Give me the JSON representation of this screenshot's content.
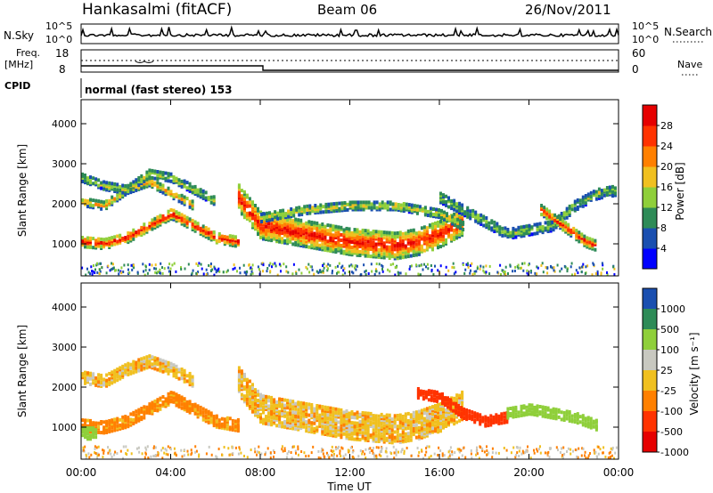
{
  "header": {
    "station": "Hankasalmi (fitACF)",
    "beam": "Beam 06",
    "date": "26/Nov/2011"
  },
  "noise_panel": {
    "left_label": "N.Sky",
    "right_label": "N.Search",
    "left_ticks": [
      "10^5",
      "10^0"
    ],
    "right_ticks": [
      "10^5",
      "10^0"
    ]
  },
  "freq_panel": {
    "left_label_top": "Freq.",
    "left_label_bottom": "[MHz]",
    "left_ticks": [
      "18",
      "8"
    ],
    "right_label": "Nave",
    "right_ticks": [
      "60",
      "0"
    ]
  },
  "cpid": {
    "label": "CPID",
    "mode": "normal (fast stereo) 153"
  },
  "chart_data": [
    {
      "type": "heatmap",
      "name": "power",
      "ylabel": "Slant Range [km]",
      "xlabel": "Time UT",
      "ylim": [
        200,
        4600
      ],
      "xlim": [
        "00:00",
        "24:00"
      ],
      "yticks": [
        "1000",
        "2000",
        "3000",
        "4000"
      ],
      "colorbar_label": "Power [dB]",
      "colorbar_ticks": [
        "4",
        "8",
        "12",
        "16",
        "20",
        "24",
        "28"
      ],
      "colorbar_colors": [
        "#0000ff",
        "#1a4fb0",
        "#2e8b57",
        "#8fcf3a",
        "#f0c020",
        "#ff8000",
        "#ff3300",
        "#e60000"
      ],
      "bands": [
        {
          "t": [
            0,
            1,
            2,
            3,
            4,
            5,
            6,
            7
          ],
          "r": [
            1100,
            1050,
            1200,
            1500,
            1800,
            1500,
            1200,
            1100
          ],
          "w": 250,
          "level": 28
        },
        {
          "t": [
            0,
            1,
            2,
            3,
            4,
            5
          ],
          "r": [
            2100,
            2000,
            2400,
            2600,
            2300,
            2000
          ],
          "w": 200,
          "level": 20
        },
        {
          "t": [
            0,
            1,
            2,
            3,
            4,
            5,
            6
          ],
          "r": [
            2700,
            2500,
            2400,
            2800,
            2700,
            2400,
            2100
          ],
          "w": 200,
          "level": 14
        },
        {
          "t": [
            7,
            8,
            9,
            10,
            11,
            12,
            13,
            14,
            15,
            16,
            17
          ],
          "r": [
            2200,
            1500,
            1400,
            1300,
            1200,
            1100,
            1050,
            1000,
            1100,
            1300,
            1600
          ],
          "w": 650,
          "level": 28
        },
        {
          "t": [
            8,
            10,
            12,
            14,
            16,
            17
          ],
          "r": [
            1700,
            1900,
            2000,
            2000,
            1800,
            1500
          ],
          "w": 200,
          "level": 16
        },
        {
          "t": [
            16,
            17,
            18,
            19,
            20,
            21,
            22,
            23,
            24
          ],
          "r": [
            2200,
            1900,
            1600,
            1300,
            1400,
            1500,
            2000,
            2300,
            2400
          ],
          "w": 250,
          "level": 12
        },
        {
          "t": [
            20.5,
            21,
            21.5,
            22,
            22.5,
            23
          ],
          "r": [
            1900,
            1700,
            1500,
            1300,
            1100,
            1000
          ],
          "w": 250,
          "level": 26
        }
      ]
    },
    {
      "type": "heatmap",
      "name": "velocity",
      "ylabel": "Slant Range [km]",
      "xlabel": "Time UT",
      "ylim": [
        200,
        4600
      ],
      "xlim": [
        "00:00",
        "24:00"
      ],
      "yticks": [
        "1000",
        "2000",
        "3000",
        "4000"
      ],
      "xticks": [
        "00:00",
        "04:00",
        "08:00",
        "12:00",
        "16:00",
        "20:00",
        "00:00"
      ],
      "colorbar_label": "Velocity [m s⁻¹]",
      "colorbar_ticks": [
        "1000",
        "500",
        "100",
        "25",
        "-25",
        "-100",
        "-500",
        "-1000"
      ],
      "colorbar_colors": [
        "#1a4fb0",
        "#2e8b57",
        "#8fcf3a",
        "#c8c8c0",
        "#f0c020",
        "#ff8000",
        "#ff3300",
        "#e60000"
      ],
      "bands": [
        {
          "t": [
            0,
            1,
            2,
            3,
            4,
            5,
            6,
            7
          ],
          "r": [
            1100,
            1050,
            1200,
            1500,
            1800,
            1500,
            1200,
            1100
          ],
          "w": 300,
          "value": -50
        },
        {
          "t": [
            0,
            1,
            2,
            3,
            4,
            5
          ],
          "r": [
            2300,
            2200,
            2500,
            2700,
            2500,
            2200
          ],
          "w": 300,
          "value": 0
        },
        {
          "t": [
            7,
            8,
            9,
            10,
            11,
            12,
            13,
            14,
            15,
            16,
            17
          ],
          "r": [
            2200,
            1500,
            1400,
            1300,
            1200,
            1100,
            1050,
            1000,
            1100,
            1300,
            1600
          ],
          "w": 700,
          "value": 0
        },
        {
          "t": [
            15,
            16,
            17,
            18,
            19
          ],
          "r": [
            1900,
            1800,
            1400,
            1200,
            1300
          ],
          "w": 250,
          "value": -200
        },
        {
          "t": [
            19,
            20,
            21,
            22,
            23
          ],
          "r": [
            1400,
            1500,
            1400,
            1300,
            1100
          ],
          "w": 250,
          "value": 200
        },
        {
          "t": [
            0,
            0.6
          ],
          "r": [
            900,
            900
          ],
          "w": 300,
          "value": 150
        }
      ]
    }
  ]
}
